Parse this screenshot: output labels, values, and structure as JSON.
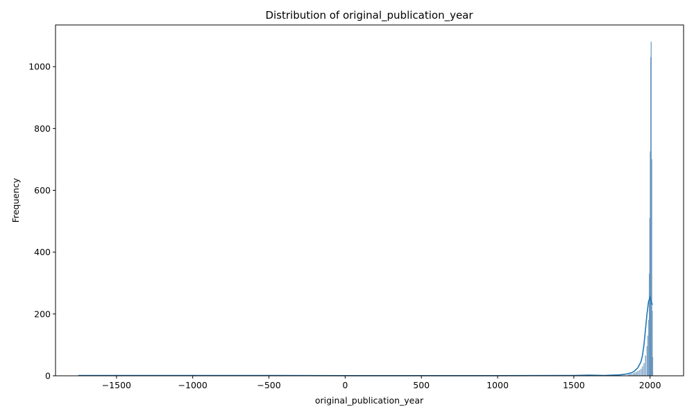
{
  "chart_data": {
    "type": "histogram",
    "title": "Distribution of original_publication_year",
    "xlabel": "original_publication_year",
    "ylabel": "Frequency",
    "xlim": [
      -1900,
      2220
    ],
    "ylim": [
      0,
      1135
    ],
    "x_ticks": [
      -1500,
      -1000,
      -500,
      0,
      500,
      1000,
      1500,
      2000
    ],
    "x_tick_labels": [
      "−1500",
      "−1000",
      "−500",
      "0",
      "500",
      "1000",
      "1500",
      "2000"
    ],
    "y_ticks": [
      0,
      200,
      400,
      600,
      800,
      1000
    ],
    "y_tick_labels": [
      "0",
      "200",
      "400",
      "600",
      "800",
      "1000"
    ],
    "grid": false,
    "bar_color": "#7aa3c8",
    "bar_edge_color": "#5b8bb5",
    "kde_color": "#1f77b4",
    "bins": [
      {
        "x": 1860,
        "count": 4
      },
      {
        "x": 1870,
        "count": 5
      },
      {
        "x": 1880,
        "count": 6
      },
      {
        "x": 1890,
        "count": 8
      },
      {
        "x": 1900,
        "count": 10
      },
      {
        "x": 1910,
        "count": 12
      },
      {
        "x": 1920,
        "count": 15
      },
      {
        "x": 1930,
        "count": 18
      },
      {
        "x": 1940,
        "count": 22
      },
      {
        "x": 1950,
        "count": 30
      },
      {
        "x": 1960,
        "count": 40
      },
      {
        "x": 1970,
        "count": 65
      },
      {
        "x": 1980,
        "count": 95
      },
      {
        "x": 1985,
        "count": 130
      },
      {
        "x": 1990,
        "count": 180
      },
      {
        "x": 1995,
        "count": 330
      },
      {
        "x": 1998,
        "count": 510
      },
      {
        "x": 2001,
        "count": 725
      },
      {
        "x": 2004,
        "count": 1030
      },
      {
        "x": 2007,
        "count": 1080
      },
      {
        "x": 2010,
        "count": 700
      },
      {
        "x": 2013,
        "count": 210
      },
      {
        "x": 2016,
        "count": 60
      }
    ],
    "kde": {
      "x": [
        -1750,
        -1500,
        -1000,
        -500,
        0,
        500,
        1000,
        1500,
        1600,
        1700,
        1750,
        1800,
        1850,
        1880,
        1900,
        1920,
        1940,
        1950,
        1960,
        1970,
        1980,
        1990,
        2000,
        2010,
        2017
      ],
      "y": [
        1,
        1,
        1,
        1,
        0.5,
        0.5,
        0.5,
        1,
        2,
        1,
        2,
        3,
        6,
        10,
        16,
        26,
        45,
        65,
        100,
        150,
        200,
        240,
        255,
        235,
        230
      ]
    }
  }
}
